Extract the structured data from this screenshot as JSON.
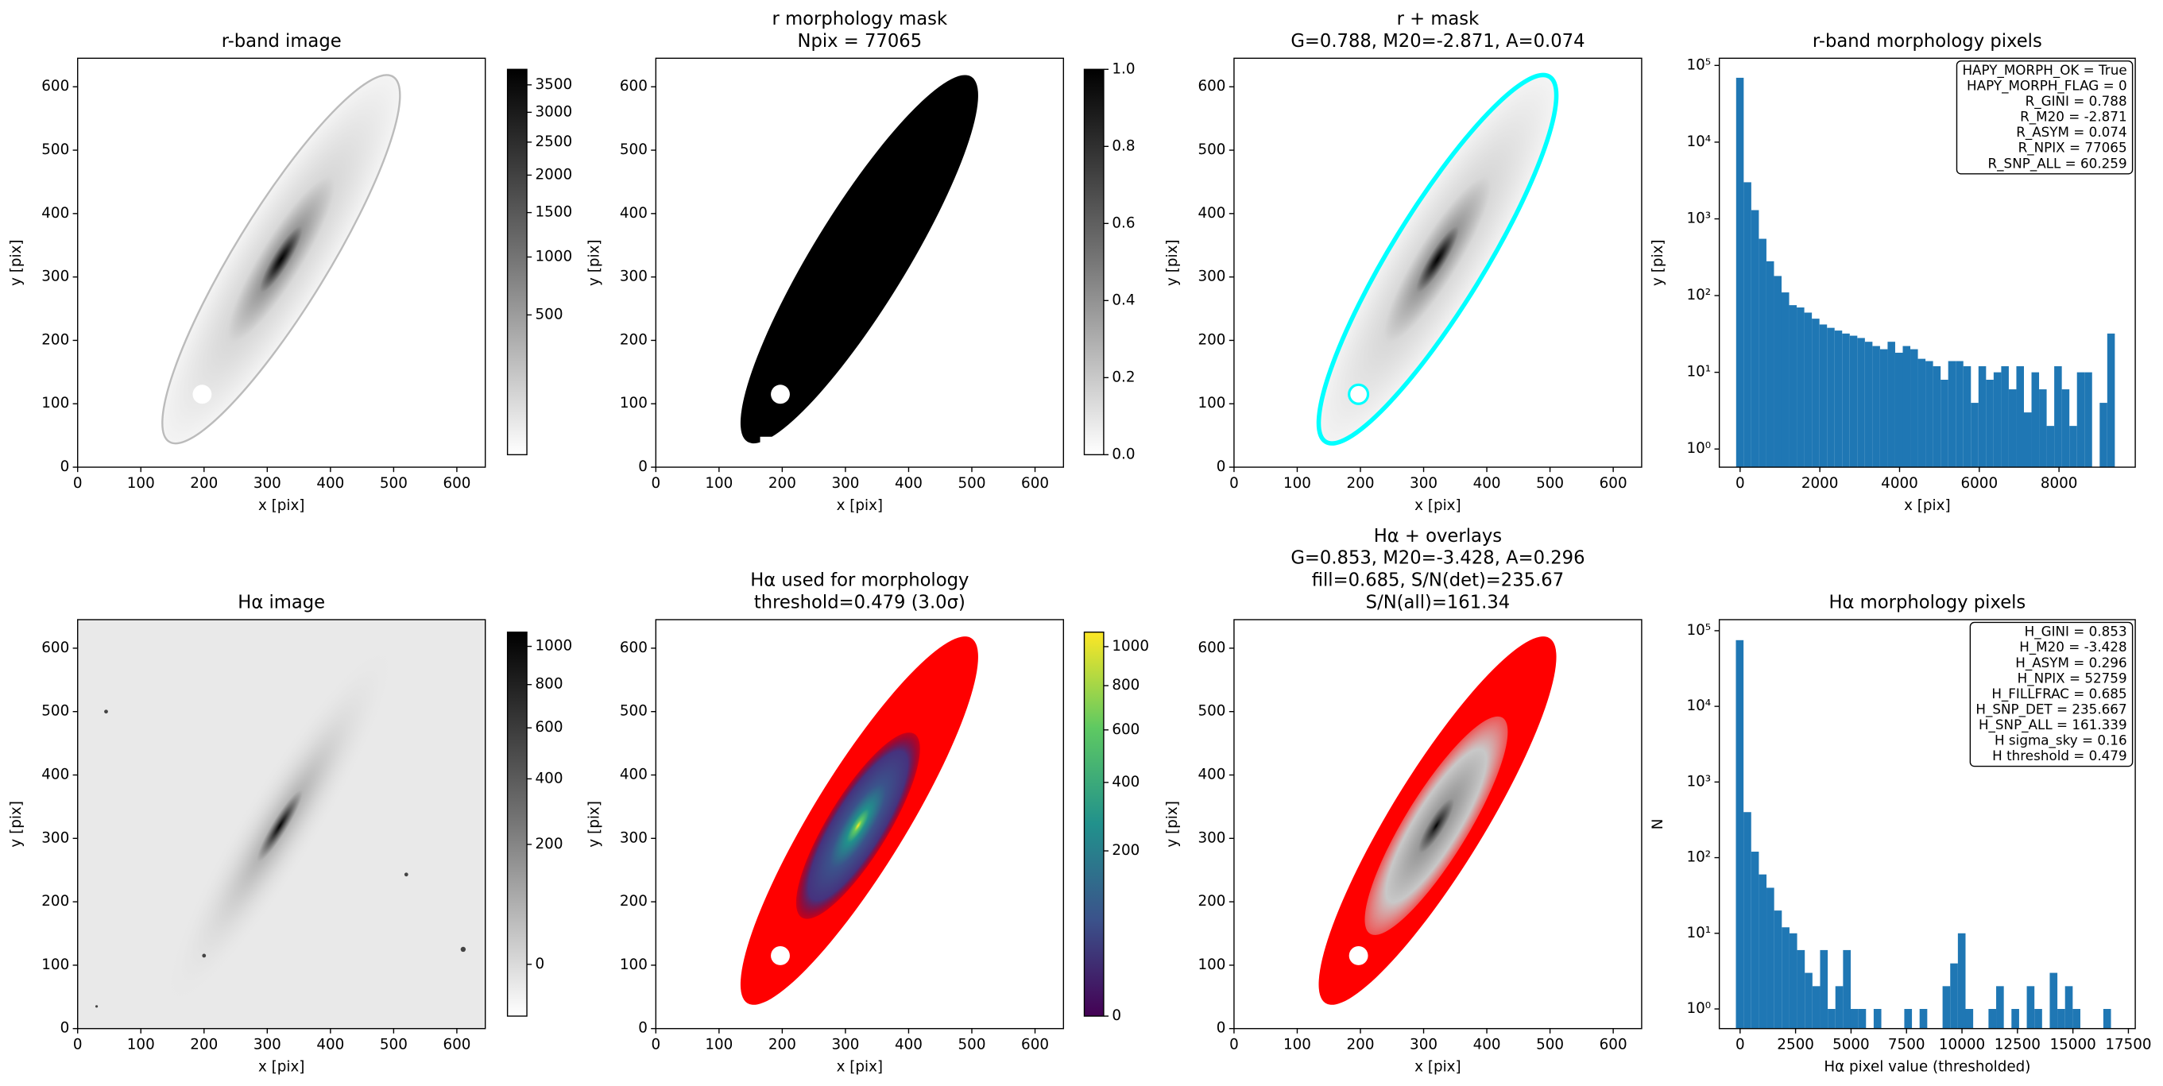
{
  "chart_data": [
    {
      "type": "image",
      "title": [
        "r-band image"
      ],
      "xlabel": "x [pix]",
      "ylabel": "y [pix]",
      "xlim": [
        0,
        645
      ],
      "ylim": [
        0,
        645
      ],
      "xticks": [
        0,
        100,
        200,
        300,
        400,
        500,
        600
      ],
      "yticks": [
        0,
        100,
        200,
        300,
        400,
        500,
        600
      ],
      "cmap": "gray_r",
      "colorbar": {
        "clim": [
          0,
          3800
        ],
        "stretch": "sqrt",
        "ticks": [
          500,
          1000,
          1500,
          2000,
          2500,
          3000,
          3500
        ]
      }
    },
    {
      "type": "image",
      "title": [
        "r morphology mask",
        "Npix = 77065"
      ],
      "xlabel": "x [pix]",
      "ylabel": "y [pix]",
      "xlim": [
        0,
        645
      ],
      "ylim": [
        0,
        645
      ],
      "xticks": [
        0,
        100,
        200,
        300,
        400,
        500,
        600
      ],
      "yticks": [
        0,
        100,
        200,
        300,
        400,
        500,
        600
      ],
      "cmap": "gray_r",
      "colorbar": {
        "clim": [
          0,
          1
        ],
        "stretch": "linear",
        "ticks": [
          {
            "value": 0,
            "label": "0.0"
          },
          0.2,
          0.4,
          0.6,
          0.8,
          {
            "value": 1,
            "label": "1.0"
          }
        ]
      }
    },
    {
      "type": "image",
      "title": [
        "r + mask",
        "G=0.788, M20=-2.871, A=0.074"
      ],
      "xlabel": "x [pix]",
      "ylabel": "y [pix]",
      "xlim": [
        0,
        645
      ],
      "ylim": [
        0,
        645
      ],
      "xticks": [
        0,
        100,
        200,
        300,
        400,
        500,
        600
      ],
      "yticks": [
        0,
        100,
        200,
        300,
        400,
        500,
        600
      ],
      "cmap": "gray_r",
      "overlay_color": "#00ffff"
    },
    {
      "type": "histogram",
      "title": [
        "r-band morphology pixels"
      ],
      "xlabel": "x [pix]",
      "ylabel": "y [pix]",
      "color": "#1f77b4",
      "yscale": "log",
      "xlim": [
        -522,
        9913
      ],
      "ylim": [
        0.58,
        124000
      ],
      "xticks": [
        0,
        2000,
        4000,
        6000,
        8000
      ],
      "yticks": [
        {
          "value": 1,
          "label": "10⁰"
        },
        {
          "value": 10,
          "label": "10¹"
        },
        {
          "value": 100,
          "label": "10²"
        },
        {
          "value": 1000,
          "label": "10³"
        },
        {
          "value": 10000,
          "label": "10⁴"
        },
        {
          "value": 100000,
          "label": "10⁵"
        }
      ],
      "bins": [
        -100,
        90,
        280,
        470,
        660,
        850,
        1040,
        1230,
        1420,
        1610,
        1800,
        1990,
        2180,
        2370,
        2560,
        2750,
        2940,
        3130,
        3320,
        3510,
        3700,
        3890,
        4080,
        4270,
        4460,
        4650,
        4840,
        5030,
        5220,
        5410,
        5600,
        5790,
        5980,
        6170,
        6360,
        6550,
        6740,
        6930,
        7120,
        7310,
        7500,
        7690,
        7880,
        8070,
        8260,
        8450,
        8640,
        8830,
        9020,
        9210,
        9400
      ],
      "values": [
        69000,
        3000,
        1300,
        550,
        280,
        180,
        110,
        75,
        70,
        60,
        50,
        42,
        38,
        35,
        32,
        30,
        28,
        25,
        22,
        20,
        25,
        18,
        22,
        20,
        15,
        14,
        12,
        8,
        14,
        14,
        12,
        4,
        12,
        8,
        10,
        12,
        6,
        12,
        3,
        10,
        6,
        2,
        12,
        6,
        2,
        10,
        10,
        0,
        4,
        32
      ],
      "stats": [
        "HAPY_MORPH_OK = True",
        "HAPY_MORPH_FLAG = 0",
        "R_GINI = 0.788",
        "R_M20 = -2.871",
        "R_ASYM = 0.074",
        "R_NPIX = 77065",
        "R_SNP_ALL = 60.259"
      ]
    },
    {
      "type": "image",
      "title": [
        "Hα image"
      ],
      "xlabel": "x [pix]",
      "ylabel": "y [pix]",
      "xlim": [
        0,
        645
      ],
      "ylim": [
        0,
        645
      ],
      "xticks": [
        0,
        100,
        200,
        300,
        400,
        500,
        600
      ],
      "yticks": [
        0,
        100,
        200,
        300,
        400,
        500,
        600
      ],
      "cmap": "gray_r",
      "colorbar": {
        "clim": [
          -20,
          1080
        ],
        "stretch": "sqrt",
        "ticks": [
          0,
          200,
          400,
          600,
          800,
          1000
        ]
      }
    },
    {
      "type": "image",
      "title": [
        "Hα used for morphology",
        "threshold=0.479 (3.0σ)"
      ],
      "xlabel": "x [pix]",
      "ylabel": "y [pix]",
      "xlim": [
        0,
        645
      ],
      "ylim": [
        0,
        645
      ],
      "xticks": [
        0,
        100,
        200,
        300,
        400,
        500,
        600
      ],
      "yticks": [
        0,
        100,
        200,
        300,
        400,
        500,
        600
      ],
      "cmap": "viridis",
      "overlay_color": "#ff0000",
      "colorbar": {
        "clim": [
          0,
          1080
        ],
        "stretch": "sqrt",
        "ticks": [
          0,
          200,
          400,
          600,
          800,
          1000
        ]
      }
    },
    {
      "type": "image",
      "title": [
        "Hα + overlays",
        "G=0.853, M20=-3.428, A=0.296",
        "fill=0.685, S/N(det)=235.67",
        "S/N(all)=161.34"
      ],
      "xlabel": "x [pix]",
      "ylabel": "y [pix]",
      "xlim": [
        0,
        645
      ],
      "ylim": [
        0,
        645
      ],
      "xticks": [
        0,
        100,
        200,
        300,
        400,
        500,
        600
      ],
      "yticks": [
        0,
        100,
        200,
        300,
        400,
        500,
        600
      ],
      "cmap": "gray_r",
      "overlay_color": "#ff0000"
    },
    {
      "type": "histogram",
      "title": [
        "Hα morphology pixels"
      ],
      "xlabel": "Hα pixel value (thresholded)",
      "ylabel": "N",
      "color": "#1f77b4",
      "yscale": "log",
      "xlim": [
        -937,
        17810
      ],
      "ylim": [
        0.55,
        140000
      ],
      "xticks": [
        0,
        2500,
        5000,
        7500,
        10000,
        12500,
        15000,
        17500
      ],
      "yticks": [
        {
          "value": 1,
          "label": "10⁰"
        },
        {
          "value": 10,
          "label": "10¹"
        },
        {
          "value": 100,
          "label": "10²"
        },
        {
          "value": 1000,
          "label": "10³"
        },
        {
          "value": 10000,
          "label": "10⁴"
        },
        {
          "value": 100000,
          "label": "10⁵"
        }
      ],
      "bins": [
        -190,
        155,
        500,
        845,
        1190,
        1535,
        1880,
        2225,
        2570,
        2915,
        3260,
        3605,
        3950,
        4295,
        4640,
        4985,
        5330,
        5675,
        6020,
        6365,
        6710,
        7055,
        7400,
        7745,
        8090,
        8435,
        8780,
        9125,
        9470,
        9815,
        10160,
        10505,
        10850,
        11195,
        11540,
        11885,
        12230,
        12575,
        12920,
        13265,
        13610,
        13955,
        14300,
        14645,
        14990,
        15335,
        15680,
        16025,
        16370,
        16715,
        17060
      ],
      "values": [
        75000,
        400,
        120,
        60,
        40,
        20,
        12,
        10,
        6,
        3,
        2,
        6,
        1,
        2,
        6,
        1,
        1,
        0,
        1,
        0,
        0,
        0,
        1,
        0,
        1,
        0,
        0,
        2,
        4,
        10,
        1,
        0,
        0,
        1,
        2,
        0,
        1,
        0,
        2,
        1,
        0,
        3,
        1,
        2,
        1,
        0,
        0,
        0,
        1,
        0
      ],
      "stats": [
        "H_GINI = 0.853",
        "H_M20 = -3.428",
        "H_ASYM = 0.296",
        "H_NPIX = 52759",
        "H_FILLFRAC = 0.685",
        "H_SNP_DET = 235.667",
        "H_SNP_ALL = 161.339",
        "H sigma_sky = 0.16",
        "H threshold = 0.479"
      ]
    }
  ]
}
